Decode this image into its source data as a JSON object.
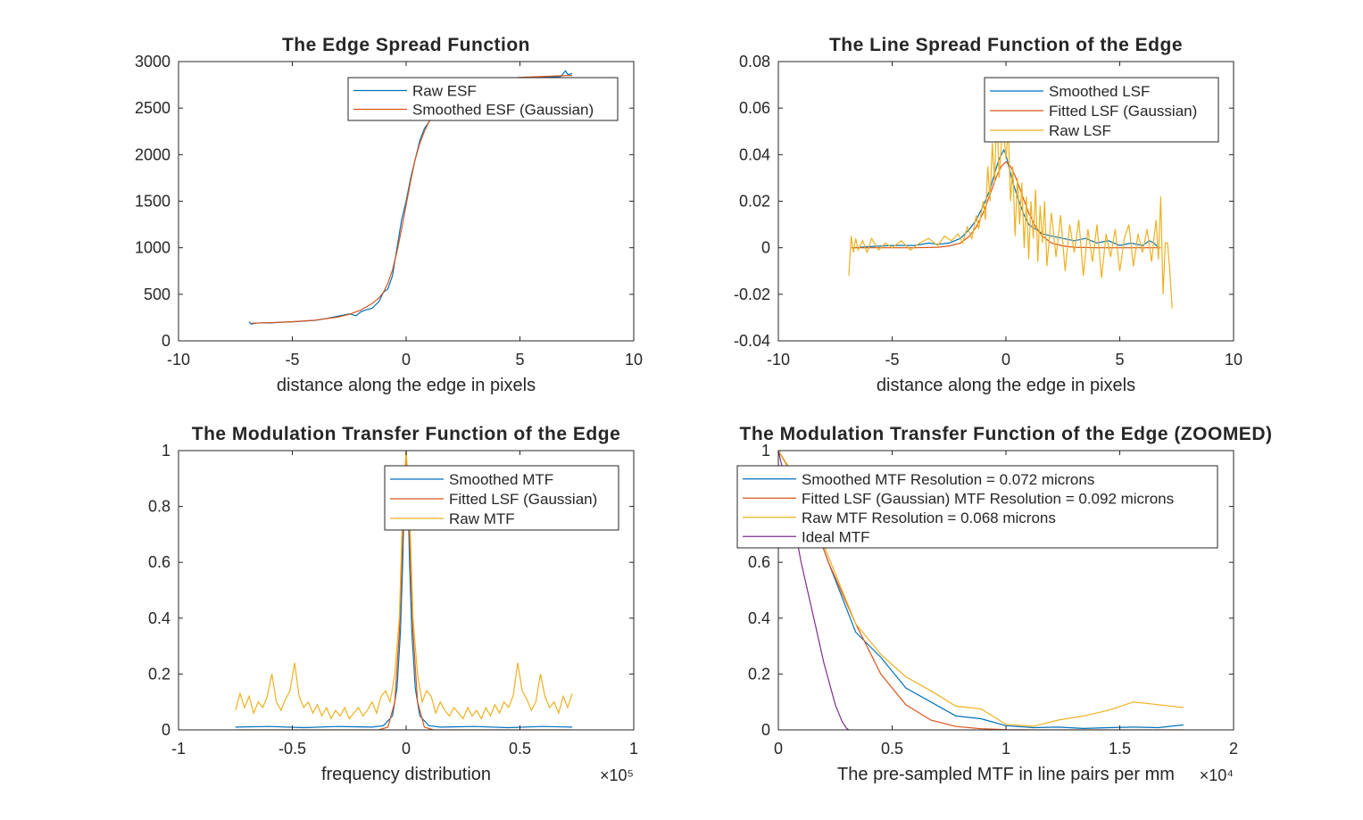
{
  "colors": {
    "blue": "#0072BD",
    "orange": "#D95319",
    "yellow": "#EDB120",
    "purple": "#7E2F8E",
    "axis": "#262626"
  },
  "chart_data": [
    {
      "type": "line",
      "title": "The Edge Spread Function",
      "xlabel": "distance along the edge in pixels",
      "ylabel": "",
      "xlim": [
        -10,
        10
      ],
      "ylim": [
        0,
        3000
      ],
      "xticks": [
        -10,
        -5,
        0,
        5,
        10
      ],
      "xtick_labels": [
        "-10",
        "-5",
        "0",
        "5",
        "10"
      ],
      "yticks": [
        0,
        500,
        1000,
        1500,
        2000,
        2500,
        3000
      ],
      "ytick_labels": [
        "0",
        "500",
        "1000",
        "1500",
        "2000",
        "2500",
        "3000"
      ],
      "x_exponent": "",
      "legend_position": "top-right",
      "grid": false,
      "series": [
        {
          "name": "Raw ESF",
          "color": "blue",
          "x": [
            -6.9,
            -6.8,
            -6.6,
            -6.3,
            -6.0,
            -5.5,
            -5.0,
            -4.5,
            -4.0,
            -3.5,
            -3.0,
            -2.5,
            -2.2,
            -2.0,
            -1.8,
            -1.5,
            -1.2,
            -1.0,
            -0.8,
            -0.6,
            -0.4,
            -0.2,
            0,
            0.2,
            0.4,
            0.6,
            0.8,
            1.0,
            1.1,
            1.2,
            1.5,
            2.0,
            3.0,
            4.0,
            5.0,
            6.0,
            6.8,
            7.0,
            7.1,
            7.3
          ],
          "y": [
            205,
            180,
            190,
            195,
            192,
            200,
            205,
            212,
            220,
            240,
            265,
            290,
            270,
            310,
            330,
            350,
            420,
            520,
            560,
            700,
            1000,
            1300,
            1500,
            1750,
            1950,
            2150,
            2280,
            2350,
            2400,
            2440,
            2550,
            2650,
            2750,
            2800,
            2820,
            2830,
            2840,
            2900,
            2860,
            2870
          ]
        },
        {
          "name": "Smoothed ESF (Gaussian)",
          "color": "orange",
          "x": [
            -6.8,
            -6.0,
            -5.0,
            -4.0,
            -3.0,
            -2.5,
            -2.0,
            -1.5,
            -1.2,
            -1.0,
            -0.8,
            -0.6,
            -0.4,
            -0.2,
            0,
            0.2,
            0.4,
            0.6,
            0.8,
            1.0,
            1.2,
            1.5,
            2.0,
            3.0,
            4.0,
            5.0,
            6.0,
            7.0,
            7.3
          ],
          "y": [
            190,
            195,
            205,
            222,
            255,
            285,
            330,
            400,
            460,
            520,
            620,
            760,
            960,
            1200,
            1460,
            1720,
            1950,
            2120,
            2250,
            2350,
            2420,
            2520,
            2640,
            2760,
            2810,
            2830,
            2840,
            2850,
            2850
          ]
        }
      ]
    },
    {
      "type": "line",
      "title": "The Line Spread Function of the Edge",
      "xlabel": "distance along the edge in pixels",
      "ylabel": "",
      "xlim": [
        -10,
        10
      ],
      "ylim": [
        -0.04,
        0.08
      ],
      "xticks": [
        -10,
        -5,
        0,
        5,
        10
      ],
      "xtick_labels": [
        "-10",
        "-5",
        "0",
        "5",
        "10"
      ],
      "yticks": [
        -0.04,
        -0.02,
        0,
        0.02,
        0.04,
        0.06,
        0.08
      ],
      "ytick_labels": [
        "-0.04",
        "-0.02",
        "0",
        "0.02",
        "0.04",
        "0.06",
        "0.08"
      ],
      "x_exponent": "",
      "legend_position": "top-right",
      "grid": false,
      "series": [
        {
          "name": "Smoothed LSF",
          "color": "blue",
          "x": [
            -6.7,
            -6.0,
            -5.0,
            -4.0,
            -3.4,
            -3.0,
            -2.5,
            -2.0,
            -1.6,
            -1.3,
            -1.0,
            -0.7,
            -0.5,
            -0.3,
            -0.1,
            0,
            0.1,
            0.3,
            0.5,
            0.8,
            1.0,
            1.3,
            1.6,
            2.0,
            2.5,
            3.0,
            3.5,
            4.0,
            4.5,
            5.0,
            5.5,
            6.0,
            6.3,
            6.5,
            6.7
          ],
          "y": [
            0,
            0.0005,
            0.001,
            0.001,
            0.002,
            0.0015,
            0.002,
            0.004,
            0.008,
            0.012,
            0.018,
            0.025,
            0.032,
            0.038,
            0.042,
            0.04,
            0.036,
            0.028,
            0.022,
            0.014,
            0.01,
            0.008,
            0.006,
            0.005,
            0.004,
            0.003,
            0.004,
            0.002,
            0.003,
            0.001,
            0.002,
            0.001,
            0.003,
            0.002,
            0
          ]
        },
        {
          "name": "Fitted LSF (Gaussian)",
          "color": "orange",
          "x": [
            -6.8,
            -5.0,
            -4.0,
            -3.0,
            -2.5,
            -2.0,
            -1.6,
            -1.3,
            -1.0,
            -0.7,
            -0.4,
            -0.2,
            0,
            0.2,
            0.4,
            0.7,
            1.0,
            1.3,
            1.6,
            2.0,
            2.5,
            3.0,
            4.0,
            5.0,
            6.8
          ],
          "y": [
            0,
            0,
            0,
            0.0002,
            0.0008,
            0.002,
            0.005,
            0.009,
            0.015,
            0.023,
            0.031,
            0.035,
            0.037,
            0.035,
            0.031,
            0.023,
            0.015,
            0.009,
            0.005,
            0.002,
            0.0008,
            0.0002,
            0,
            0,
            0
          ]
        },
        {
          "name": "Raw LSF",
          "color": "yellow",
          "x": [
            -6.9,
            -6.8,
            -6.7,
            -6.6,
            -6.5,
            -6.3,
            -6.1,
            -5.9,
            -5.6,
            -5.3,
            -5.0,
            -4.6,
            -4.2,
            -3.8,
            -3.4,
            -3.0,
            -2.7,
            -2.4,
            -2.1,
            -1.9,
            -1.7,
            -1.5,
            -1.3,
            -1.2,
            -1.0,
            -0.9,
            -0.8,
            -0.7,
            -0.6,
            -0.5,
            -0.4,
            -0.3,
            -0.2,
            -0.1,
            0,
            0.1,
            0.2,
            0.3,
            0.4,
            0.5,
            0.6,
            0.7,
            0.8,
            0.9,
            1.0,
            1.1,
            1.2,
            1.3,
            1.4,
            1.5,
            1.6,
            1.7,
            1.8,
            2.0,
            2.2,
            2.4,
            2.6,
            2.8,
            3.0,
            3.2,
            3.4,
            3.6,
            3.8,
            4.0,
            4.2,
            4.4,
            4.6,
            4.8,
            5.0,
            5.2,
            5.4,
            5.6,
            5.8,
            6.0,
            6.2,
            6.4,
            6.5,
            6.6,
            6.7,
            6.8,
            6.9,
            7.0,
            7.1,
            7.2,
            7.3
          ],
          "y": [
            -0.012,
            0.005,
            -0.002,
            0.004,
            -0.001,
            0.003,
            -0.002,
            0.004,
            -0.001,
            0.002,
            0.0,
            0.003,
            -0.001,
            0.002,
            0.004,
            0.001,
            0.005,
            0.003,
            0.006,
            0.002,
            0.009,
            0.004,
            0.014,
            0.008,
            0.02,
            0.012,
            0.035,
            0.02,
            0.045,
            0.028,
            0.06,
            0.03,
            0.045,
            0.05,
            0.038,
            0.052,
            0.02,
            0.035,
            0.005,
            0.03,
            0.01,
            0.028,
            0.0,
            0.022,
            -0.005,
            0.02,
            0.004,
            0.025,
            -0.006,
            0.018,
            0.002,
            0.02,
            -0.008,
            0.015,
            -0.004,
            0.014,
            -0.01,
            0.01,
            -0.002,
            0.012,
            -0.012,
            0.008,
            -0.006,
            0.01,
            -0.013,
            0.006,
            -0.004,
            0.008,
            -0.01,
            0.004,
            0.01,
            -0.008,
            0.006,
            -0.002,
            0.008,
            -0.006,
            0.004,
            0.012,
            -0.005,
            0.022,
            -0.02,
            0.002,
            0.002,
            -0.01,
            -0.026
          ]
        }
      ]
    },
    {
      "type": "line",
      "title": "The Modulation Transfer Function of the Edge",
      "xlabel": "frequency distribution",
      "ylabel": "",
      "xlim": [
        -1,
        1
      ],
      "ylim": [
        0,
        1
      ],
      "xticks": [
        -1,
        -0.5,
        0,
        0.5,
        1
      ],
      "xtick_labels": [
        "-1",
        "-0.5",
        "0",
        "0.5",
        "1"
      ],
      "yticks": [
        0,
        0.2,
        0.4,
        0.6,
        0.8,
        1
      ],
      "ytick_labels": [
        "0",
        "0.2",
        "0.4",
        "0.6",
        "0.8",
        "1"
      ],
      "x_exponent": "×10⁵",
      "legend_position": "top-right",
      "grid": false,
      "series": [
        {
          "name": "Smoothed MTF",
          "color": "blue",
          "x": [
            -0.75,
            -0.6,
            -0.45,
            -0.3,
            -0.15,
            -0.1,
            -0.06,
            -0.04,
            -0.025,
            -0.015,
            -0.008,
            0,
            0.008,
            0.015,
            0.025,
            0.04,
            0.06,
            0.1,
            0.15,
            0.3,
            0.45,
            0.6,
            0.73
          ],
          "y": [
            0.01,
            0.012,
            0.008,
            0.012,
            0.01,
            0.015,
            0.05,
            0.15,
            0.35,
            0.6,
            0.85,
            1.0,
            0.85,
            0.6,
            0.35,
            0.15,
            0.05,
            0.015,
            0.01,
            0.012,
            0.008,
            0.012,
            0.01
          ]
        },
        {
          "name": "Fitted LSF (Gaussian)",
          "color": "orange",
          "x": [
            -0.75,
            -0.3,
            -0.12,
            -0.08,
            -0.05,
            -0.03,
            -0.015,
            0,
            0.015,
            0.03,
            0.05,
            0.08,
            0.12,
            0.3,
            0.73
          ],
          "y": [
            0,
            0,
            0,
            0.01,
            0.1,
            0.35,
            0.7,
            1.0,
            0.7,
            0.35,
            0.1,
            0.01,
            0,
            0,
            0
          ]
        },
        {
          "name": "Raw MTF",
          "color": "yellow",
          "x": [
            -0.75,
            -0.73,
            -0.71,
            -0.69,
            -0.67,
            -0.65,
            -0.63,
            -0.61,
            -0.59,
            -0.57,
            -0.55,
            -0.53,
            -0.51,
            -0.49,
            -0.47,
            -0.45,
            -0.43,
            -0.41,
            -0.39,
            -0.37,
            -0.35,
            -0.33,
            -0.31,
            -0.29,
            -0.27,
            -0.25,
            -0.23,
            -0.21,
            -0.19,
            -0.17,
            -0.15,
            -0.13,
            -0.11,
            -0.09,
            -0.07,
            -0.05,
            -0.03,
            -0.015,
            0,
            0.015,
            0.03,
            0.05,
            0.07,
            0.09,
            0.11,
            0.13,
            0.15,
            0.17,
            0.19,
            0.21,
            0.23,
            0.25,
            0.27,
            0.29,
            0.31,
            0.33,
            0.35,
            0.37,
            0.39,
            0.41,
            0.43,
            0.45,
            0.47,
            0.49,
            0.51,
            0.53,
            0.55,
            0.57,
            0.59,
            0.61,
            0.63,
            0.65,
            0.67,
            0.69,
            0.71,
            0.73
          ],
          "y": [
            0.07,
            0.13,
            0.08,
            0.12,
            0.06,
            0.1,
            0.08,
            0.12,
            0.2,
            0.1,
            0.07,
            0.11,
            0.14,
            0.24,
            0.12,
            0.08,
            0.1,
            0.06,
            0.09,
            0.05,
            0.08,
            0.04,
            0.07,
            0.05,
            0.08,
            0.04,
            0.06,
            0.08,
            0.05,
            0.07,
            0.1,
            0.06,
            0.12,
            0.14,
            0.1,
            0.2,
            0.4,
            0.8,
            1.0,
            0.8,
            0.4,
            0.2,
            0.1,
            0.14,
            0.12,
            0.06,
            0.1,
            0.07,
            0.05,
            0.08,
            0.06,
            0.04,
            0.08,
            0.05,
            0.07,
            0.04,
            0.08,
            0.05,
            0.09,
            0.06,
            0.1,
            0.08,
            0.12,
            0.24,
            0.14,
            0.11,
            0.07,
            0.1,
            0.2,
            0.12,
            0.08,
            0.1,
            0.06,
            0.12,
            0.08,
            0.13
          ]
        }
      ]
    },
    {
      "type": "line",
      "title": "The Modulation Transfer Function of the Edge (ZOOMED)",
      "xlabel": "The pre-sampled MTF in line pairs per mm",
      "ylabel": "",
      "xlim": [
        0,
        2
      ],
      "ylim": [
        0,
        1
      ],
      "xticks": [
        0,
        0.5,
        1,
        1.5,
        2
      ],
      "xtick_labels": [
        "0",
        "0.5",
        "1",
        "1.5",
        "2"
      ],
      "yticks": [
        0,
        0.2,
        0.4,
        0.6,
        0.8,
        1
      ],
      "ytick_labels": [
        "0",
        "0.2",
        "0.4",
        "0.6",
        "0.8",
        "1"
      ],
      "x_exponent": "×10⁴",
      "legend_position": "top",
      "grid": false,
      "series": [
        {
          "name": "Smoothed MTF Resolution = 0.072 microns",
          "color": "blue",
          "x": [
            0,
            0.11,
            0.22,
            0.34,
            0.45,
            0.56,
            0.67,
            0.78,
            0.89,
            1.0,
            1.12,
            1.23,
            1.34,
            1.45,
            1.56,
            1.67,
            1.78
          ],
          "y": [
            1.0,
            0.85,
            0.6,
            0.35,
            0.26,
            0.15,
            0.1,
            0.05,
            0.04,
            0.015,
            0.008,
            0.01,
            0.005,
            0.008,
            0.01,
            0.008,
            0.018
          ]
        },
        {
          "name": "Fitted LSF (Gaussian) MTF Resolution = 0.092 microns",
          "color": "orange",
          "x": [
            0,
            0.11,
            0.22,
            0.34,
            0.45,
            0.56,
            0.67,
            0.78,
            0.89,
            1.0,
            1.12,
            1.23,
            1.34,
            1.45,
            1.56,
            1.67,
            1.78
          ],
          "y": [
            1.0,
            0.85,
            0.6,
            0.38,
            0.2,
            0.09,
            0.035,
            0.012,
            0.004,
            0.001,
            0,
            0,
            0,
            0,
            0,
            0,
            0
          ]
        },
        {
          "name": "Raw MTF Resolution = 0.068 microns",
          "color": "yellow",
          "x": [
            0,
            0.11,
            0.22,
            0.34,
            0.45,
            0.56,
            0.67,
            0.78,
            0.89,
            1.0,
            1.12,
            1.23,
            1.34,
            1.45,
            1.56,
            1.67,
            1.78
          ],
          "y": [
            1.0,
            0.86,
            0.62,
            0.38,
            0.27,
            0.19,
            0.14,
            0.085,
            0.075,
            0.02,
            0.013,
            0.035,
            0.05,
            0.07,
            0.1,
            0.09,
            0.08
          ]
        },
        {
          "name": "Ideal MTF",
          "color": "purple",
          "x": [
            0,
            0.05,
            0.1,
            0.15,
            0.2,
            0.25,
            0.28,
            0.3,
            0.31
          ],
          "y": [
            1.0,
            0.82,
            0.6,
            0.42,
            0.24,
            0.09,
            0.03,
            0.005,
            0
          ]
        }
      ]
    }
  ]
}
